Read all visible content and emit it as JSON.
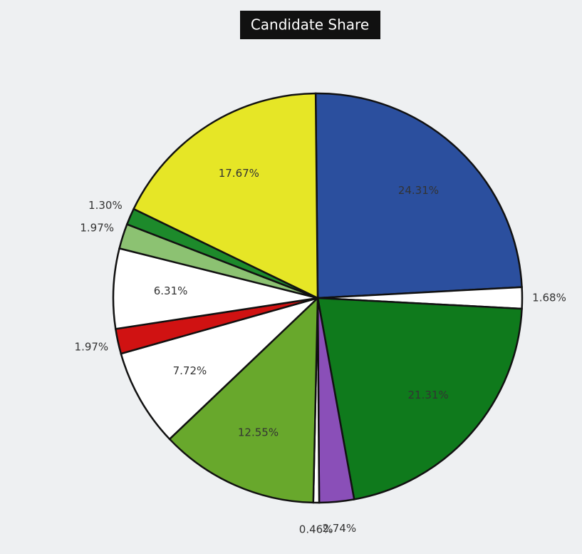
{
  "chart_data": {
    "type": "pie",
    "title": "Candidate Share",
    "values": [
      24.31,
      1.68,
      21.31,
      2.74,
      0.46,
      12.55,
      7.72,
      1.97,
      6.31,
      1.97,
      1.3,
      17.67
    ],
    "value_labels": [
      "24.31%",
      "1.68%",
      "21.31%",
      "2.74%",
      "0.46%",
      "12.55%",
      "7.72%",
      "1.97%",
      "6.31%",
      "1.97%",
      "1.30%",
      "17.67%"
    ],
    "colors": [
      "#2b4f9e",
      "#ffffff",
      "#0f7a1c",
      "#8a4fb8",
      "#ffffff",
      "#68a82c",
      "#ffffff",
      "#d01212",
      "#ffffff",
      "#8cc272",
      "#1d8a2b",
      "#e6e626"
    ]
  }
}
